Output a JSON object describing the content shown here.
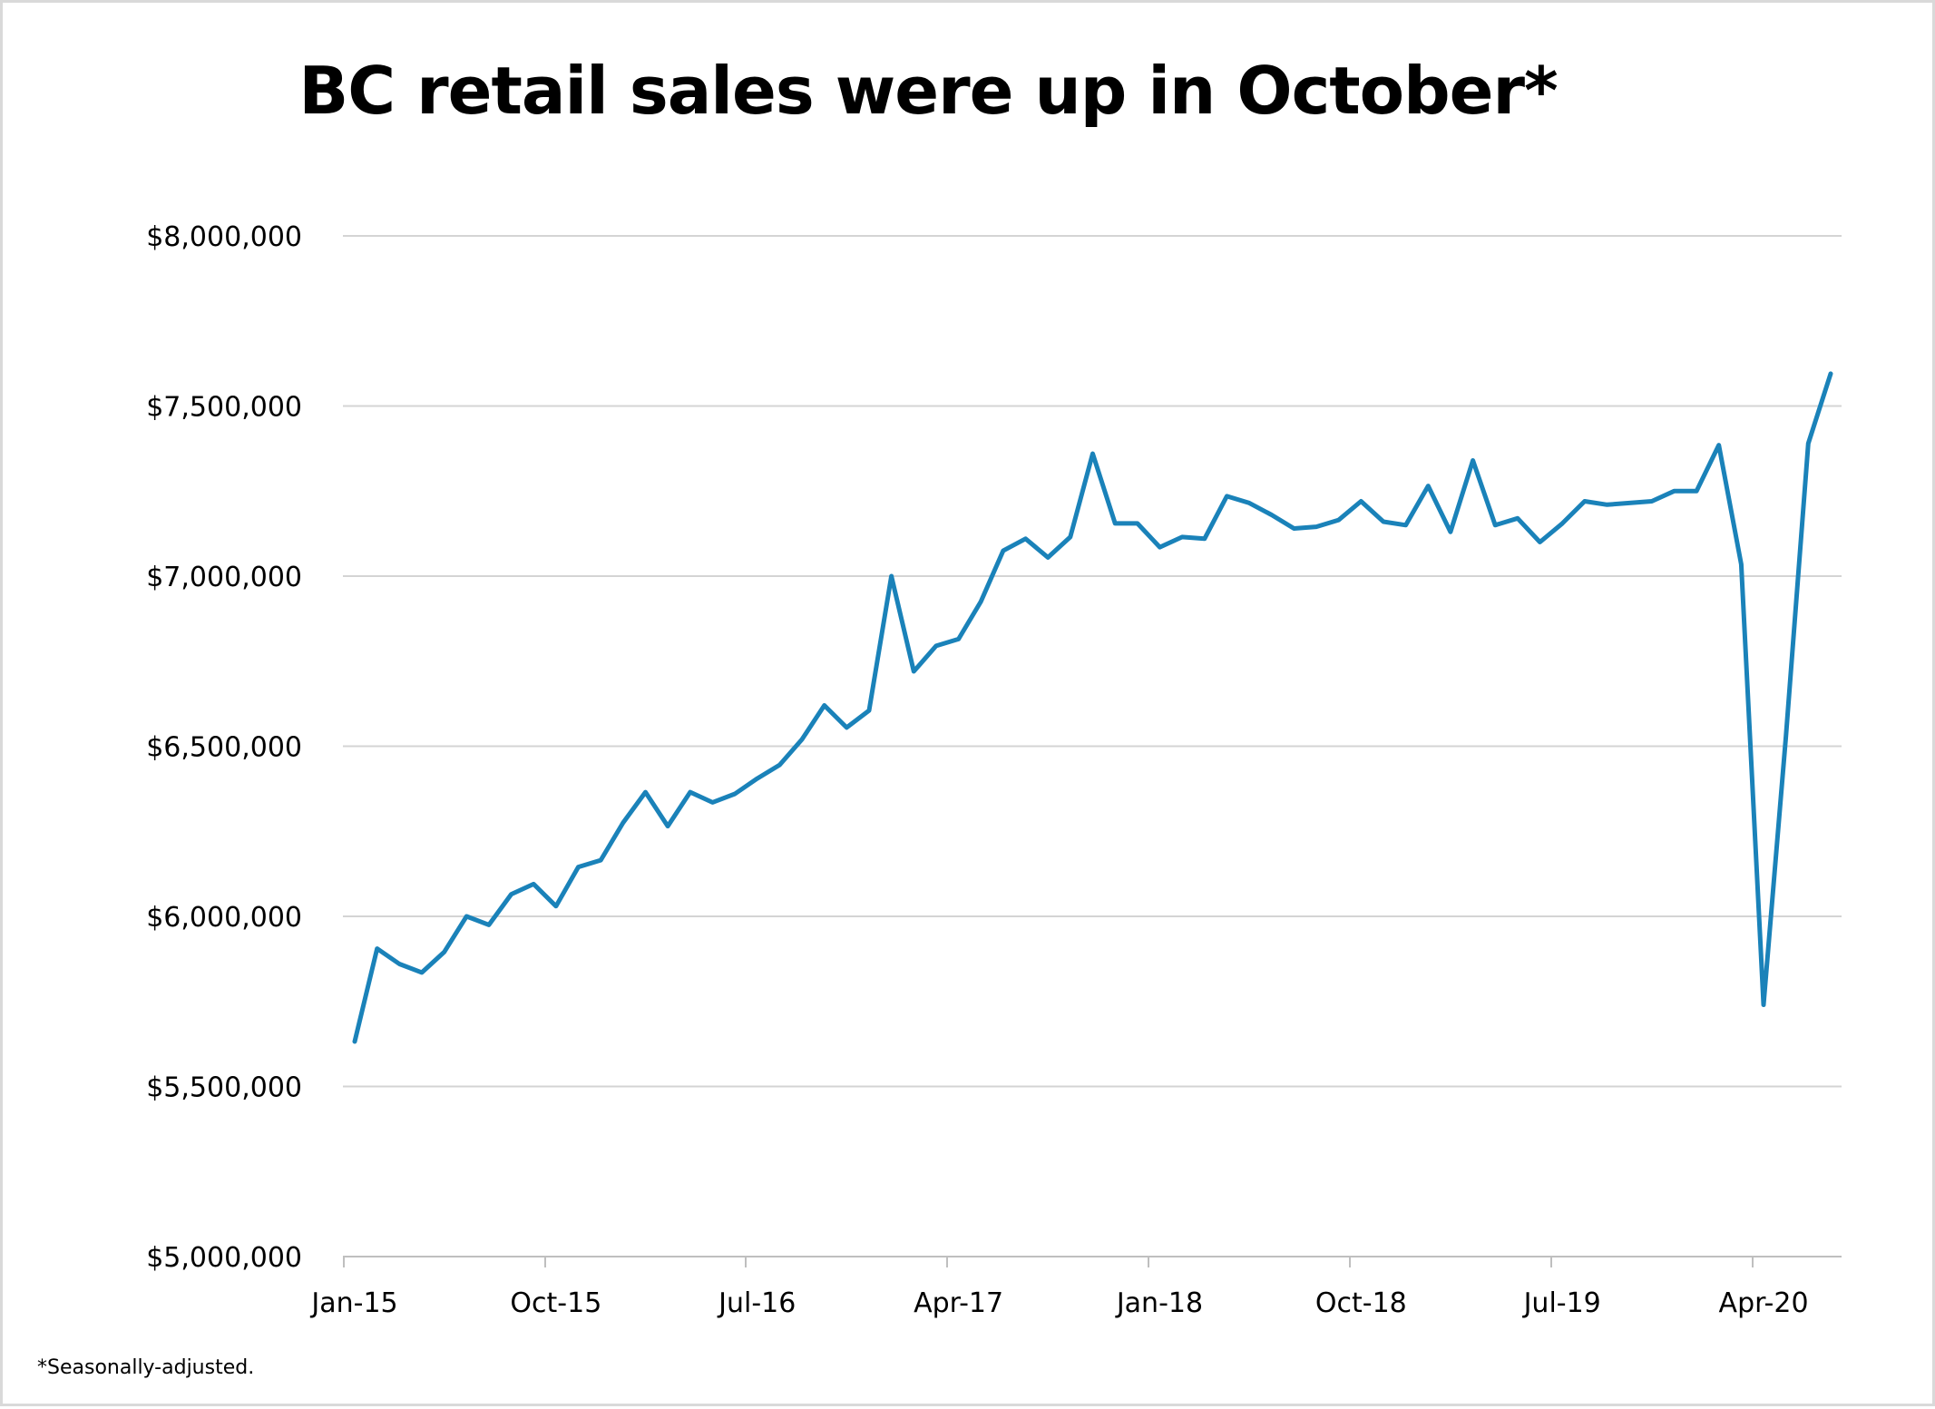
{
  "chart_data": {
    "type": "line",
    "title": "BC retail sales were up in October*",
    "footnote": "*Seasonally-adjusted.",
    "xlabel": "",
    "ylabel": "",
    "ylim": [
      5000000,
      8000000
    ],
    "y_ticks": [
      5000000,
      5500000,
      6000000,
      6500000,
      7000000,
      7500000,
      8000000
    ],
    "y_tick_labels": [
      "$5,000,000",
      "$5,500,000",
      "$6,000,000",
      "$6,500,000",
      "$7,000,000",
      "$7,500,000",
      "$8,000,000"
    ],
    "x_tick_labels": [
      "Jan-15",
      "Oct-15",
      "Jul-16",
      "Apr-17",
      "Jan-18",
      "Oct-18",
      "Jul-19",
      "Apr-20"
    ],
    "x_tick_indices": [
      0,
      9,
      18,
      27,
      36,
      45,
      54,
      63
    ],
    "grid": true,
    "line_color": "#1a82b9",
    "series": [
      {
        "values": [
          5632000,
          5905000,
          5860000,
          5835000,
          5895000,
          6000000,
          5975000,
          6065000,
          6095000,
          6030000,
          6145000,
          6165000,
          6275000,
          6365000,
          6265000,
          6365000,
          6335000,
          6360000,
          6405000,
          6445000,
          6520000,
          6620000,
          6555000,
          6605000,
          7000000,
          6720000,
          6795000,
          6815000,
          6925000,
          7075000,
          7110000,
          7055000,
          7115000,
          7360000,
          7155000,
          7155000,
          7085000,
          7115000,
          7110000,
          7235000,
          7215000,
          7180000,
          7140000,
          7145000,
          7165000,
          7220000,
          7160000,
          7150000,
          7265000,
          7130000,
          7340000,
          7150000,
          7170000,
          7100000,
          7155000,
          7220000,
          7210000,
          7215000,
          7220000,
          7250000,
          7250000,
          7385000,
          7035000,
          5740000,
          6530000,
          7390000,
          7595000
        ]
      }
    ]
  }
}
